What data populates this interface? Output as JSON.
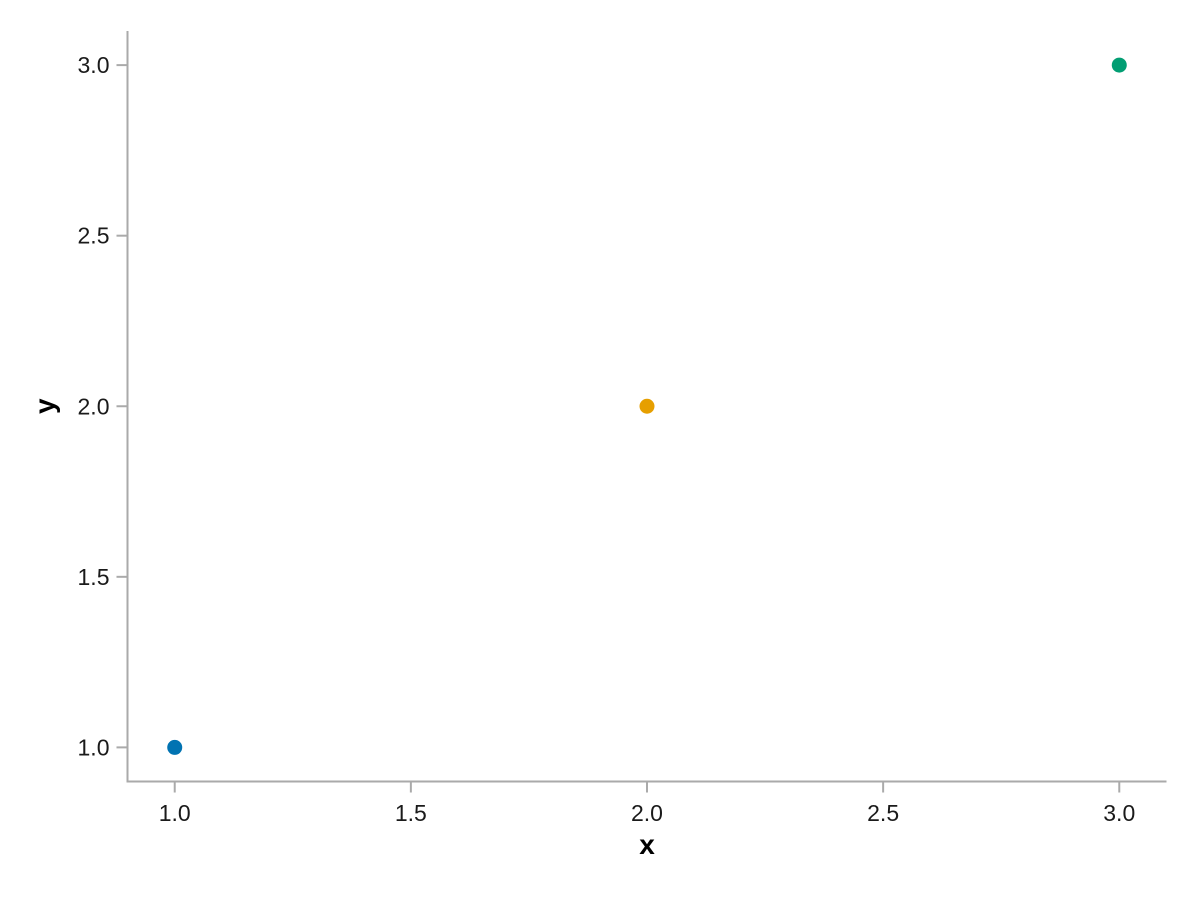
{
  "chart_data": {
    "type": "scatter",
    "title": "",
    "xlabel": "x",
    "ylabel": "y",
    "xlim": [
      0.9,
      3.1
    ],
    "ylim": [
      0.9,
      3.1
    ],
    "grid": false,
    "legend": "none",
    "x_tick_values": [
      1.0,
      1.5,
      2.0,
      2.5,
      3.0
    ],
    "x_tick_labels": [
      "1.0",
      "1.5",
      "2.0",
      "2.5",
      "3.0"
    ],
    "y_tick_values": [
      1.0,
      1.5,
      2.0,
      2.5,
      3.0
    ],
    "y_tick_labels": [
      "1.0",
      "1.5",
      "2.0",
      "2.5",
      "3.0"
    ],
    "points": [
      {
        "x": 1,
        "y": 1,
        "color": "#0173b2"
      },
      {
        "x": 2,
        "y": 2,
        "color": "#e69f00"
      },
      {
        "x": 3,
        "y": 3,
        "color": "#029e73"
      }
    ],
    "colors": {
      "spine": "#aaaaaa",
      "tick": "#aaaaaa",
      "tick_label": "#1a1a1a",
      "axis_label": "#000000",
      "background": "#ffffff"
    }
  }
}
